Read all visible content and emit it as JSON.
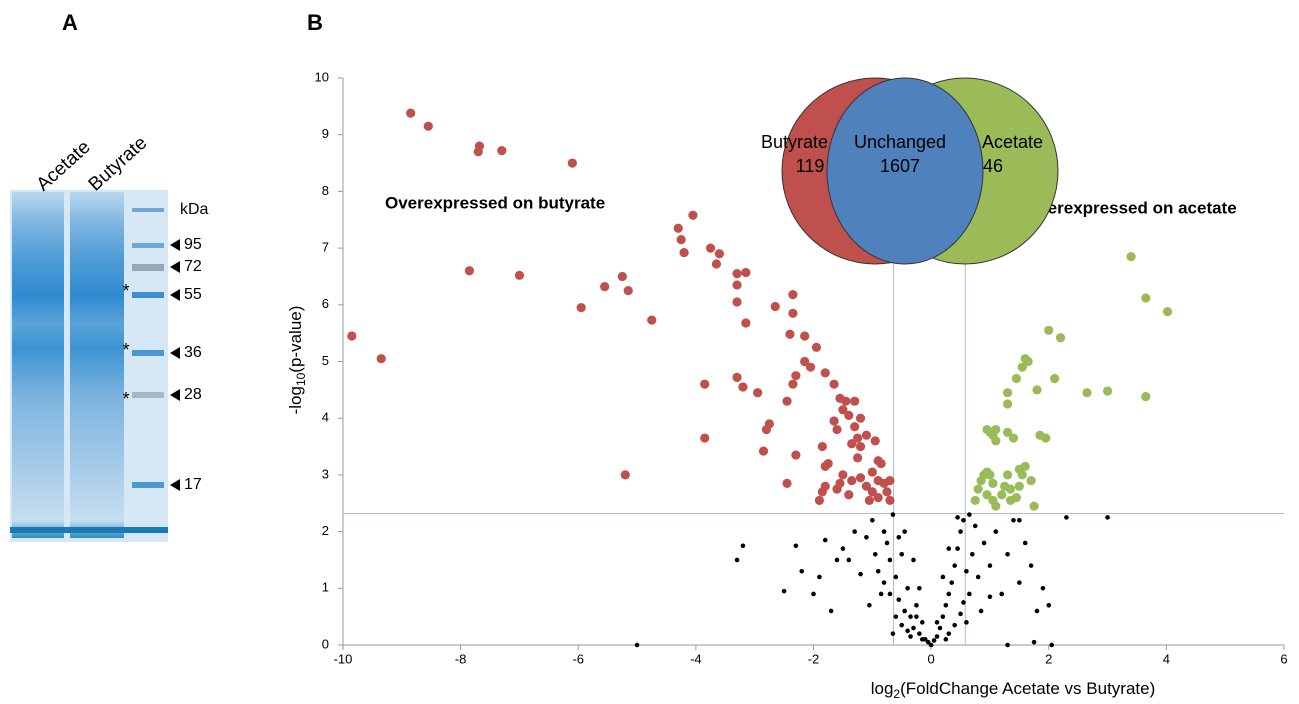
{
  "panel_a": {
    "label": "A",
    "lanes": [
      "Acetate",
      "Butyrate"
    ],
    "unit": "kDa",
    "markers": [
      95,
      72,
      55,
      36,
      28,
      17
    ],
    "asterisks": [
      "*",
      "*",
      "*"
    ]
  },
  "chart_data": {
    "type": "scatter",
    "panel_label": "B",
    "x_label": {
      "prefix": "log",
      "sub": "2",
      "rest": "(FoldChange Acetate vs Butyrate)"
    },
    "y_label": {
      "prefix": "-log",
      "sub": "10",
      "rest": "(p-value)"
    },
    "xlim": [
      -10,
      6
    ],
    "xticks": [
      -10,
      -8,
      -6,
      -4,
      -2,
      0,
      2,
      4,
      6
    ],
    "ylim": [
      0,
      10
    ],
    "yticks": [
      0,
      1,
      2,
      3,
      4,
      5,
      6,
      7,
      8,
      9,
      10
    ],
    "thresholds": {
      "y": 2.32,
      "x": [
        -0.64,
        0.58
      ]
    },
    "venn": [
      {
        "label": "Butyrate",
        "count": 119,
        "color": "#c0504d"
      },
      {
        "label": "Unchanged",
        "count": 1607,
        "color": "#4f81bd"
      },
      {
        "label": "Acetate",
        "count": 46,
        "color": "#9bbb59"
      }
    ],
    "series": [
      {
        "color": "#000000",
        "x": [
          -3.3,
          -3.2,
          -2.3,
          -2.5,
          -1.7,
          -2.0,
          -1.9,
          -1.6,
          -1.5,
          -2.2,
          -1.8,
          -1.3,
          -1.4,
          -1.2,
          -1.1,
          -1.0,
          -0.95,
          -0.9,
          -0.85,
          -0.8,
          -0.75,
          -0.7,
          -0.65,
          -0.6,
          -0.55,
          -0.5,
          -0.45,
          -0.4,
          -0.35,
          -0.3,
          -0.25,
          -0.2,
          -0.15,
          -0.1,
          -0.05,
          0,
          0.05,
          0.1,
          0.15,
          0.2,
          0.25,
          0.3,
          0.35,
          0.4,
          0.45,
          0.5,
          0.55,
          0.6,
          0.65,
          0.7,
          0.75,
          0.8,
          0.9,
          1.0,
          1.1,
          1.2,
          1.3,
          1.4,
          1.5,
          1.6,
          1.7,
          1.8,
          1.9,
          2.0,
          2.3,
          1.5,
          3.0,
          -5.0,
          1.3,
          2.05,
          1.75,
          -0.7,
          -0.6,
          -0.5,
          -0.4,
          0.3,
          0.4,
          0.5,
          0.55,
          -0.3,
          -0.2,
          0.2,
          0.3,
          -0.45,
          0.45,
          -0.55,
          0.65,
          -0.8,
          0.85,
          -1.05,
          1.0,
          -0.35,
          0.25,
          -0.15,
          0.1,
          -0.25,
          0.6,
          -0.65
        ],
        "values": [
          1.5,
          1.75,
          1.75,
          0.95,
          0.6,
          0.9,
          1.2,
          1.5,
          1.7,
          1.3,
          1.85,
          2.0,
          1.5,
          1.25,
          1.9,
          2.2,
          1.6,
          1.3,
          0.9,
          2.0,
          1.8,
          1.5,
          2.3,
          1.2,
          0.8,
          1.6,
          0.6,
          1.0,
          0.5,
          0.3,
          0.7,
          0.2,
          0.4,
          0.1,
          0.05,
          0,
          0.08,
          0.15,
          0.3,
          0.5,
          0.7,
          0.9,
          1.1,
          1.4,
          1.7,
          2.0,
          2.2,
          1.3,
          0.9,
          1.6,
          2.1,
          1.2,
          1.8,
          1.4,
          2.0,
          0.9,
          1.6,
          2.2,
          1.1,
          1.8,
          1.4,
          0.6,
          1.0,
          0.7,
          2.25,
          2.2,
          2.25,
          0.0,
          0.0,
          0.0,
          0.05,
          0.9,
          0.5,
          0.35,
          0.25,
          0.2,
          0.35,
          0.55,
          0.75,
          1.5,
          1.0,
          1.2,
          1.7,
          2.0,
          2.25,
          1.9,
          2.3,
          1.1,
          0.6,
          0.7,
          0.85,
          0.15,
          0.1,
          0.1,
          0.4,
          0.5,
          0.4,
          0.2
        ]
      },
      {
        "name": "Overexpressed on butyrate",
        "color": "#c0504d",
        "x": [
          -9.85,
          -9.35,
          -8.85,
          -8.55,
          -7.85,
          -7.7,
          -7.68,
          -7.3,
          -7.0,
          -6.1,
          -5.95,
          -5.55,
          -5.25,
          -5.15,
          -5.2,
          -4.75,
          -4.05,
          -4.3,
          -4.25,
          -4.2,
          -3.85,
          -3.85,
          -3.75,
          -3.6,
          -3.65,
          -3.3,
          -3.15,
          -3.3,
          -3.3,
          -3.15,
          -3.3,
          -3.2,
          -2.95,
          -2.65,
          -2.75,
          -2.8,
          -2.85,
          -2.45,
          -2.45,
          -2.35,
          -2.35,
          -2.4,
          -2.3,
          -2.35,
          -2.3,
          -2.15,
          -2.15,
          -2.05,
          -1.95,
          -1.8,
          -1.65,
          -1.55,
          -1.45,
          -1.3,
          -1.5,
          -1.4,
          -1.65,
          -1.6,
          -1.85,
          -1.75,
          -1.8,
          -1.85,
          -1.8,
          -1.9,
          -1.3,
          -1.2,
          -1.25,
          -1.1,
          -0.95,
          -0.9,
          -0.85,
          -1.0,
          -1.2,
          -1.35,
          -1.5,
          -1.55,
          -1.4,
          -1.6,
          -1.1,
          -1.0,
          -0.9,
          -0.8,
          -0.75,
          -0.9,
          -1.05,
          -0.7,
          -0.7,
          -1.25,
          -1.35,
          -1.2
        ],
        "values": [
          5.45,
          5.05,
          9.38,
          9.15,
          6.6,
          8.7,
          8.8,
          8.72,
          6.52,
          8.5,
          5.95,
          6.32,
          6.5,
          6.25,
          3.0,
          5.73,
          7.58,
          7.35,
          7.15,
          6.92,
          4.6,
          3.65,
          7.0,
          6.9,
          6.72,
          6.55,
          6.57,
          6.35,
          6.05,
          5.68,
          4.72,
          4.55,
          4.45,
          5.97,
          3.9,
          3.8,
          3.42,
          4.3,
          2.85,
          6.18,
          5.85,
          5.48,
          4.75,
          4.6,
          3.35,
          5.45,
          5.0,
          4.9,
          5.25,
          4.8,
          4.6,
          4.35,
          4.3,
          4.3,
          4.15,
          4.05,
          3.95,
          3.8,
          3.5,
          3.2,
          3.15,
          2.7,
          2.8,
          2.55,
          3.85,
          3.5,
          3.65,
          3.7,
          3.6,
          3.25,
          3.2,
          3.05,
          2.95,
          2.9,
          3.0,
          2.85,
          2.65,
          2.75,
          2.8,
          2.7,
          2.9,
          2.85,
          2.7,
          2.6,
          2.55,
          2.9,
          2.55,
          3.3,
          3.55,
          4.0
        ]
      },
      {
        "name": "Overexpressed on acetate",
        "color": "#9bbb59",
        "x": [
          0.75,
          0.8,
          0.85,
          0.9,
          0.95,
          1.0,
          1.05,
          0.95,
          1.05,
          1.1,
          1.2,
          1.25,
          1.3,
          1.35,
          1.45,
          1.5,
          1.55,
          1.6,
          1.5,
          1.35,
          0.95,
          1.0,
          1.05,
          1.1,
          1.1,
          1.3,
          1.4,
          1.3,
          1.3,
          1.45,
          1.55,
          1.6,
          1.65,
          1.8,
          1.85,
          1.95,
          1.75,
          2.0,
          2.1,
          2.2,
          2.65,
          3.0,
          3.4,
          3.65,
          3.65,
          4.02,
          1.7
        ],
        "values": [
          2.55,
          2.75,
          2.9,
          3.0,
          3.05,
          3.0,
          2.85,
          2.65,
          2.55,
          2.45,
          2.65,
          2.8,
          3.0,
          2.75,
          2.6,
          2.8,
          3.0,
          3.15,
          3.1,
          2.55,
          3.8,
          3.75,
          3.7,
          3.6,
          3.8,
          3.75,
          3.65,
          4.25,
          4.45,
          4.7,
          4.9,
          5.05,
          5.0,
          4.5,
          3.7,
          3.65,
          2.45,
          5.55,
          4.7,
          5.42,
          4.45,
          4.48,
          6.85,
          6.12,
          4.38,
          5.88,
          2.9
        ]
      }
    ]
  }
}
